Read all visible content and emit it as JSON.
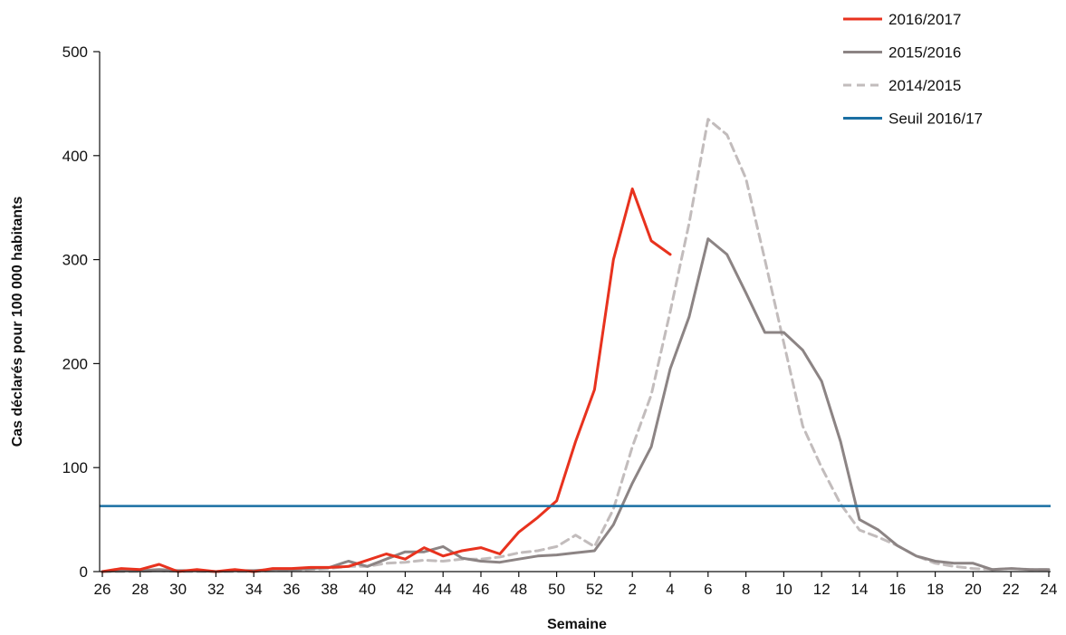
{
  "chart_data": {
    "type": "line",
    "title": "",
    "xlabel": "Semaine",
    "ylabel": "Cas déclarés pour 100 000 habitants",
    "ylim": [
      0,
      500
    ],
    "yticks": [
      0,
      100,
      200,
      300,
      400,
      500
    ],
    "weeks": [
      26,
      27,
      28,
      29,
      30,
      31,
      32,
      33,
      34,
      35,
      36,
      37,
      38,
      39,
      40,
      41,
      42,
      43,
      44,
      45,
      46,
      47,
      48,
      49,
      50,
      51,
      52,
      1,
      2,
      3,
      4,
      5,
      6,
      7,
      8,
      9,
      10,
      11,
      12,
      13,
      14,
      15,
      16,
      17,
      18,
      19,
      20,
      21,
      22,
      23,
      24
    ],
    "xtick_labels": [
      "26",
      "28",
      "30",
      "32",
      "34",
      "36",
      "38",
      "40",
      "42",
      "44",
      "46",
      "48",
      "50",
      "52",
      "2",
      "4",
      "6",
      "8",
      "10",
      "12",
      "14",
      "16",
      "18",
      "20",
      "22",
      "24"
    ],
    "grid": false,
    "legend_position": "top-right",
    "series": [
      {
        "name": "2016/2017",
        "color": "#e8321e",
        "style": "solid",
        "values": [
          0,
          3,
          2,
          7,
          0,
          2,
          0,
          2,
          0,
          3,
          3,
          4,
          4,
          5,
          11,
          17,
          12,
          23,
          15,
          20,
          23,
          17,
          38,
          52,
          68,
          125,
          175,
          300,
          368,
          318,
          305
        ]
      },
      {
        "name": "2015/2016",
        "color": "#8c8484",
        "style": "solid",
        "values": [
          0,
          1,
          1,
          2,
          1,
          1,
          0,
          1,
          1,
          2,
          2,
          3,
          4,
          10,
          5,
          12,
          19,
          19,
          24,
          13,
          10,
          9,
          12,
          15,
          16,
          18,
          20,
          45,
          85,
          120,
          195,
          245,
          320,
          305,
          268,
          230,
          230,
          213,
          183,
          125,
          50,
          40,
          25,
          15,
          10,
          8,
          8,
          2,
          3,
          2,
          2
        ]
      },
      {
        "name": "2014/2015",
        "color": "#c2bcbc",
        "style": "dashed",
        "values": [
          0,
          0,
          0,
          1,
          0,
          0,
          0,
          0,
          0,
          1,
          1,
          2,
          3,
          5,
          5,
          8,
          9,
          11,
          10,
          12,
          12,
          14,
          18,
          20,
          24,
          35,
          24,
          60,
          120,
          170,
          250,
          335,
          435,
          420,
          378,
          300,
          220,
          140,
          100,
          65,
          40,
          33,
          25,
          15,
          8,
          5,
          3,
          2,
          3,
          2,
          2
        ]
      },
      {
        "name": "Seuil 2016/17",
        "color": "#1a6fa3",
        "style": "solid",
        "constant": 63
      }
    ]
  }
}
